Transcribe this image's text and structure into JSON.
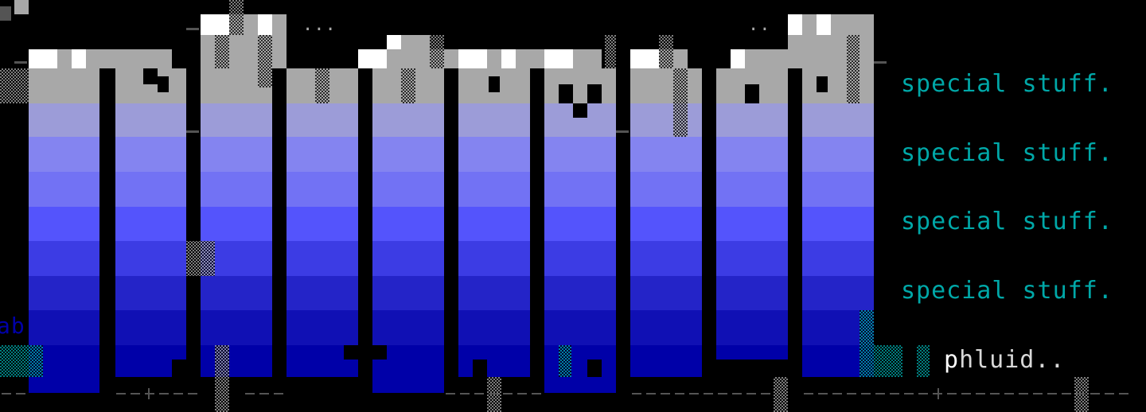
{
  "taglines": [
    "special stuff.",
    "special stuff.",
    "special stuff.",
    "special stuff."
  ],
  "signature": {
    "first": "p",
    "rest": "hluid.."
  },
  "left_fragment": "ab",
  "dots": [
    "...",
    ".."
  ],
  "colors": {
    "background": "#000000",
    "white": "#ffffff",
    "gray": "#a8a8a8",
    "dark_gray": "#545454",
    "light_blue": "#5454fc",
    "blue": "#0000a8",
    "cyan": "#00a8a8"
  }
}
